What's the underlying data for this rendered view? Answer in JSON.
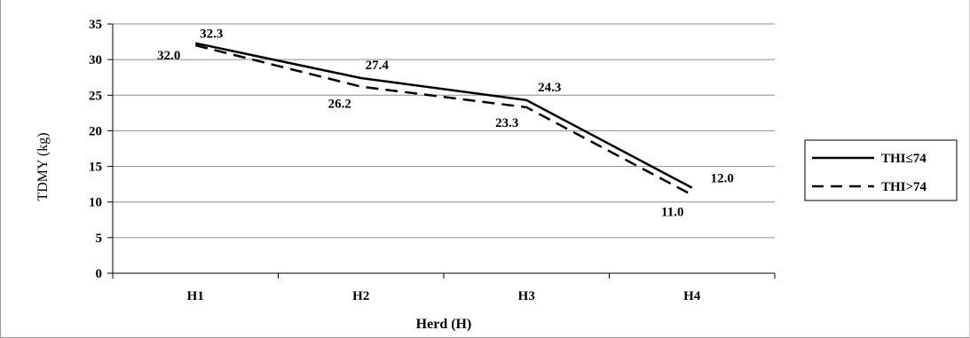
{
  "chart_data": {
    "type": "line",
    "categories": [
      "H1",
      "H2",
      "H3",
      "H4"
    ],
    "series": [
      {
        "name": "THI≤74",
        "values": [
          32.3,
          27.4,
          24.3,
          12.0
        ],
        "labels": [
          "32.3",
          "27.4",
          "24.3",
          "12.0"
        ],
        "style": "solid",
        "color": "#000000"
      },
      {
        "name": "THI>74",
        "values": [
          32.0,
          26.2,
          23.3,
          11.0
        ],
        "labels": [
          "32.0",
          "26.2",
          "23.3",
          "11.0"
        ],
        "style": "dashed",
        "color": "#000000"
      }
    ],
    "xlabel": "Herd (H)",
    "ylabel": "TDMY (kg)",
    "ylim": [
      0,
      35
    ],
    "yticks": [
      0,
      5,
      10,
      15,
      20,
      25,
      30,
      35
    ],
    "grid": true,
    "legend_position": "right"
  }
}
